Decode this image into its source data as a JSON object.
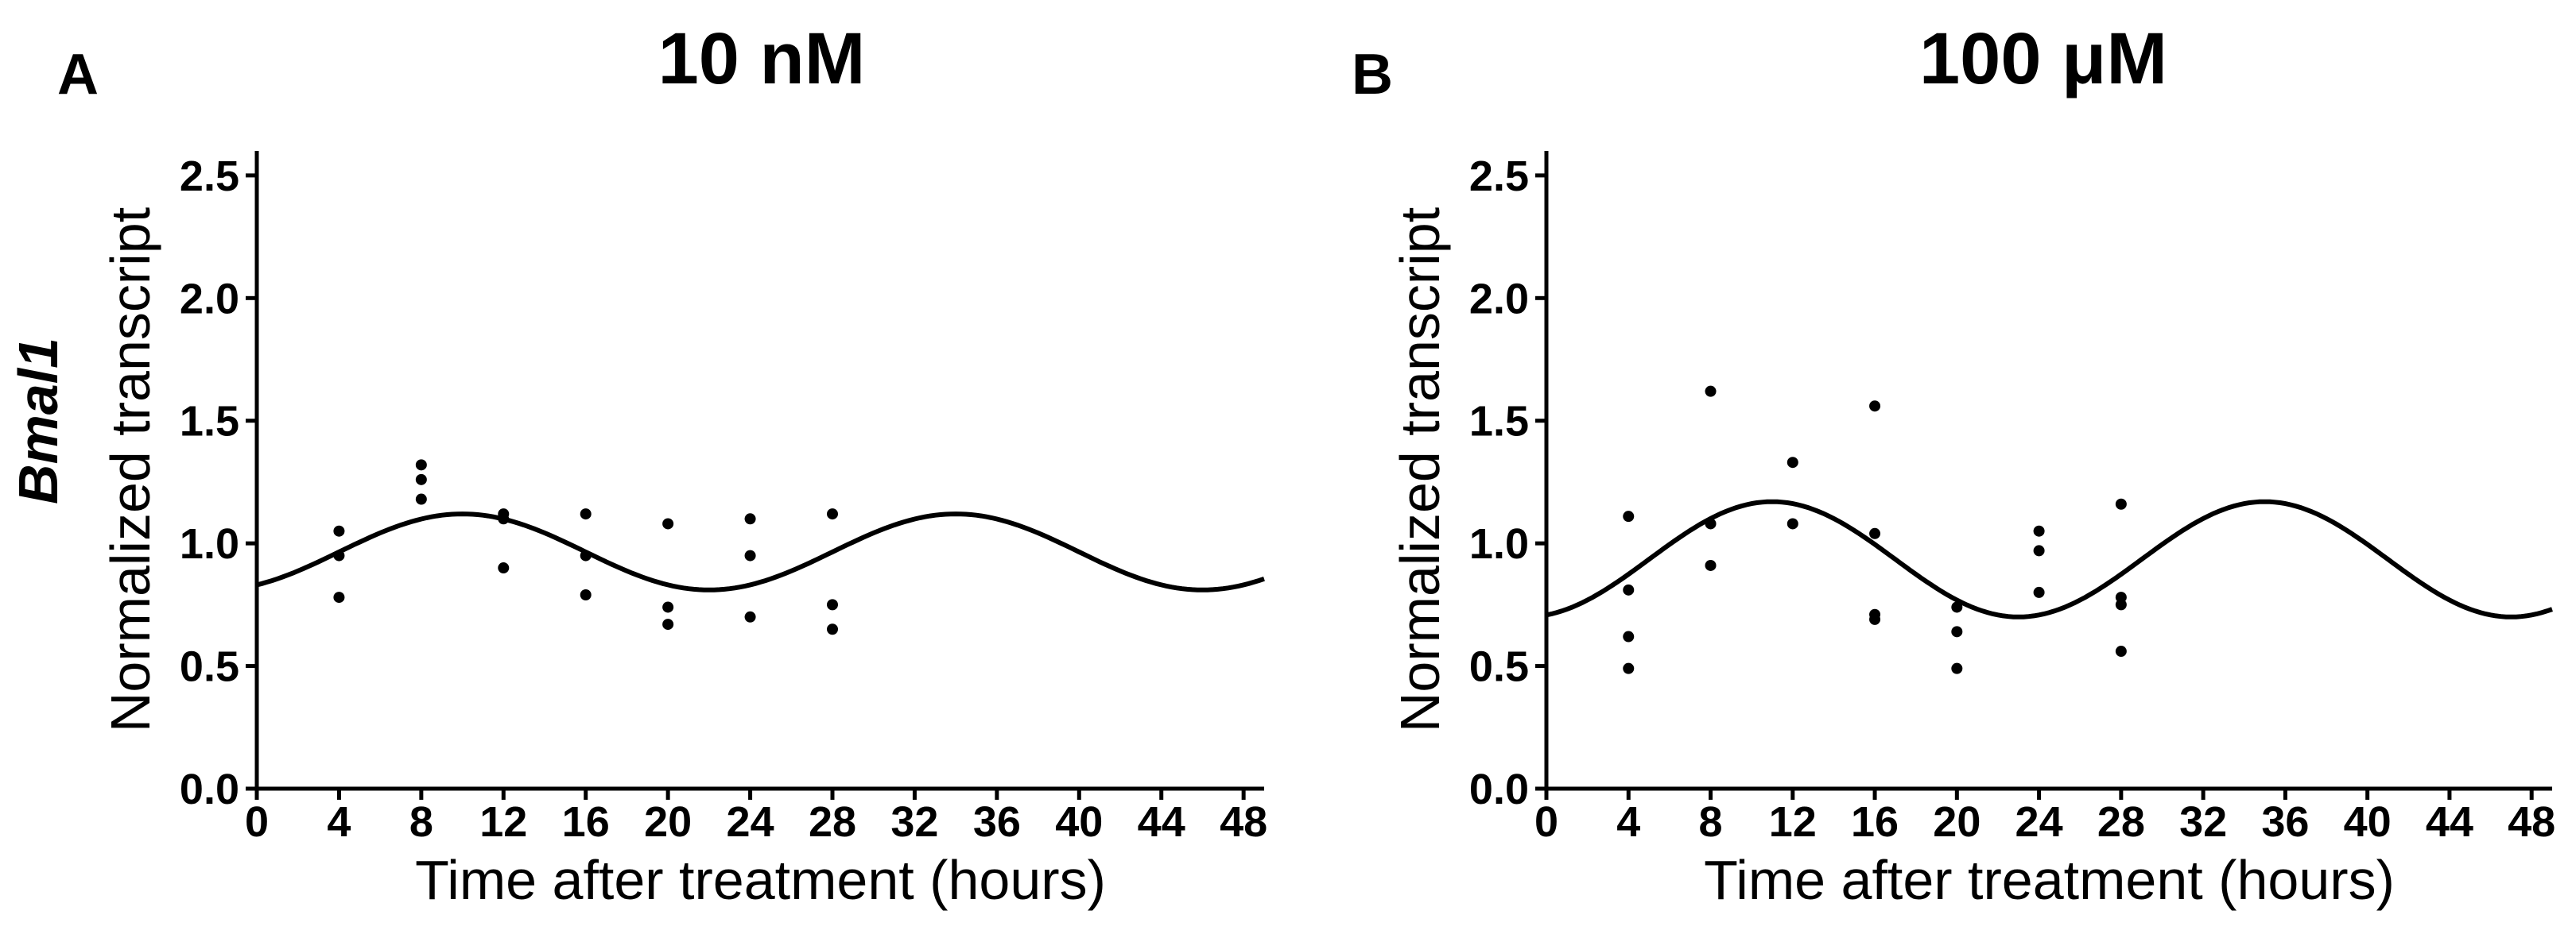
{
  "gene_label": "Bmal1",
  "chart_data": [
    {
      "type": "scatter",
      "panel_label": "A",
      "title": "10 nM",
      "xlabel": "Time after treatment (hours)",
      "ylabel": "Normalized transcript",
      "xlim": [
        0,
        49
      ],
      "ylim": [
        0,
        2.6
      ],
      "xticks": [
        0,
        4,
        8,
        12,
        16,
        20,
        24,
        28,
        32,
        36,
        40,
        44,
        48
      ],
      "yticks": [
        0.0,
        0.5,
        1.0,
        1.5,
        2.0,
        2.5
      ],
      "ytick_labels": [
        "0.0",
        "0.5",
        "1.0",
        "1.5",
        "2.0",
        "2.5"
      ],
      "points": [
        {
          "x": 4,
          "y": 1.05
        },
        {
          "x": 4,
          "y": 0.95
        },
        {
          "x": 4,
          "y": 0.78
        },
        {
          "x": 8,
          "y": 1.32
        },
        {
          "x": 8,
          "y": 1.26
        },
        {
          "x": 8,
          "y": 1.18
        },
        {
          "x": 12,
          "y": 1.12
        },
        {
          "x": 12,
          "y": 1.1
        },
        {
          "x": 12,
          "y": 0.9
        },
        {
          "x": 16,
          "y": 1.12
        },
        {
          "x": 16,
          "y": 0.95
        },
        {
          "x": 16,
          "y": 0.79
        },
        {
          "x": 20,
          "y": 1.08
        },
        {
          "x": 20,
          "y": 0.74
        },
        {
          "x": 20,
          "y": 0.67
        },
        {
          "x": 24,
          "y": 1.1
        },
        {
          "x": 24,
          "y": 0.95
        },
        {
          "x": 24,
          "y": 0.7
        },
        {
          "x": 28,
          "y": 1.12
        },
        {
          "x": 28,
          "y": 0.75
        },
        {
          "x": 28,
          "y": 0.65
        }
      ],
      "fit": {
        "mesor": 0.965,
        "amplitude": 0.155,
        "period": 24,
        "peak_time": 10
      }
    },
    {
      "type": "scatter",
      "panel_label": "B",
      "title": "100 μM",
      "xlabel": "Time after treatment (hours)",
      "ylabel": "Normalized transcript",
      "xlim": [
        0,
        49
      ],
      "ylim": [
        0,
        2.6
      ],
      "xticks": [
        0,
        4,
        8,
        12,
        16,
        20,
        24,
        28,
        32,
        36,
        40,
        44,
        48
      ],
      "yticks": [
        0.0,
        0.5,
        1.0,
        1.5,
        2.0,
        2.5
      ],
      "ytick_labels": [
        "0.0",
        "0.5",
        "1.0",
        "1.5",
        "2.0",
        "2.5"
      ],
      "points": [
        {
          "x": 4,
          "y": 1.11
        },
        {
          "x": 4,
          "y": 0.81
        },
        {
          "x": 4,
          "y": 0.62
        },
        {
          "x": 4,
          "y": 0.49
        },
        {
          "x": 8,
          "y": 1.62
        },
        {
          "x": 8,
          "y": 1.08
        },
        {
          "x": 8,
          "y": 0.91
        },
        {
          "x": 12,
          "y": 1.33
        },
        {
          "x": 12,
          "y": 1.08
        },
        {
          "x": 16,
          "y": 1.56
        },
        {
          "x": 16,
          "y": 1.04
        },
        {
          "x": 16,
          "y": 0.71
        },
        {
          "x": 16,
          "y": 0.69
        },
        {
          "x": 20,
          "y": 0.74
        },
        {
          "x": 20,
          "y": 0.64
        },
        {
          "x": 20,
          "y": 0.49
        },
        {
          "x": 24,
          "y": 1.05
        },
        {
          "x": 24,
          "y": 0.97
        },
        {
          "x": 24,
          "y": 0.8
        },
        {
          "x": 28,
          "y": 1.16
        },
        {
          "x": 28,
          "y": 0.78
        },
        {
          "x": 28,
          "y": 0.75
        },
        {
          "x": 28,
          "y": 0.56
        }
      ],
      "fit": {
        "mesor": 0.935,
        "amplitude": 0.235,
        "period": 24,
        "peak_time": 11
      }
    }
  ]
}
